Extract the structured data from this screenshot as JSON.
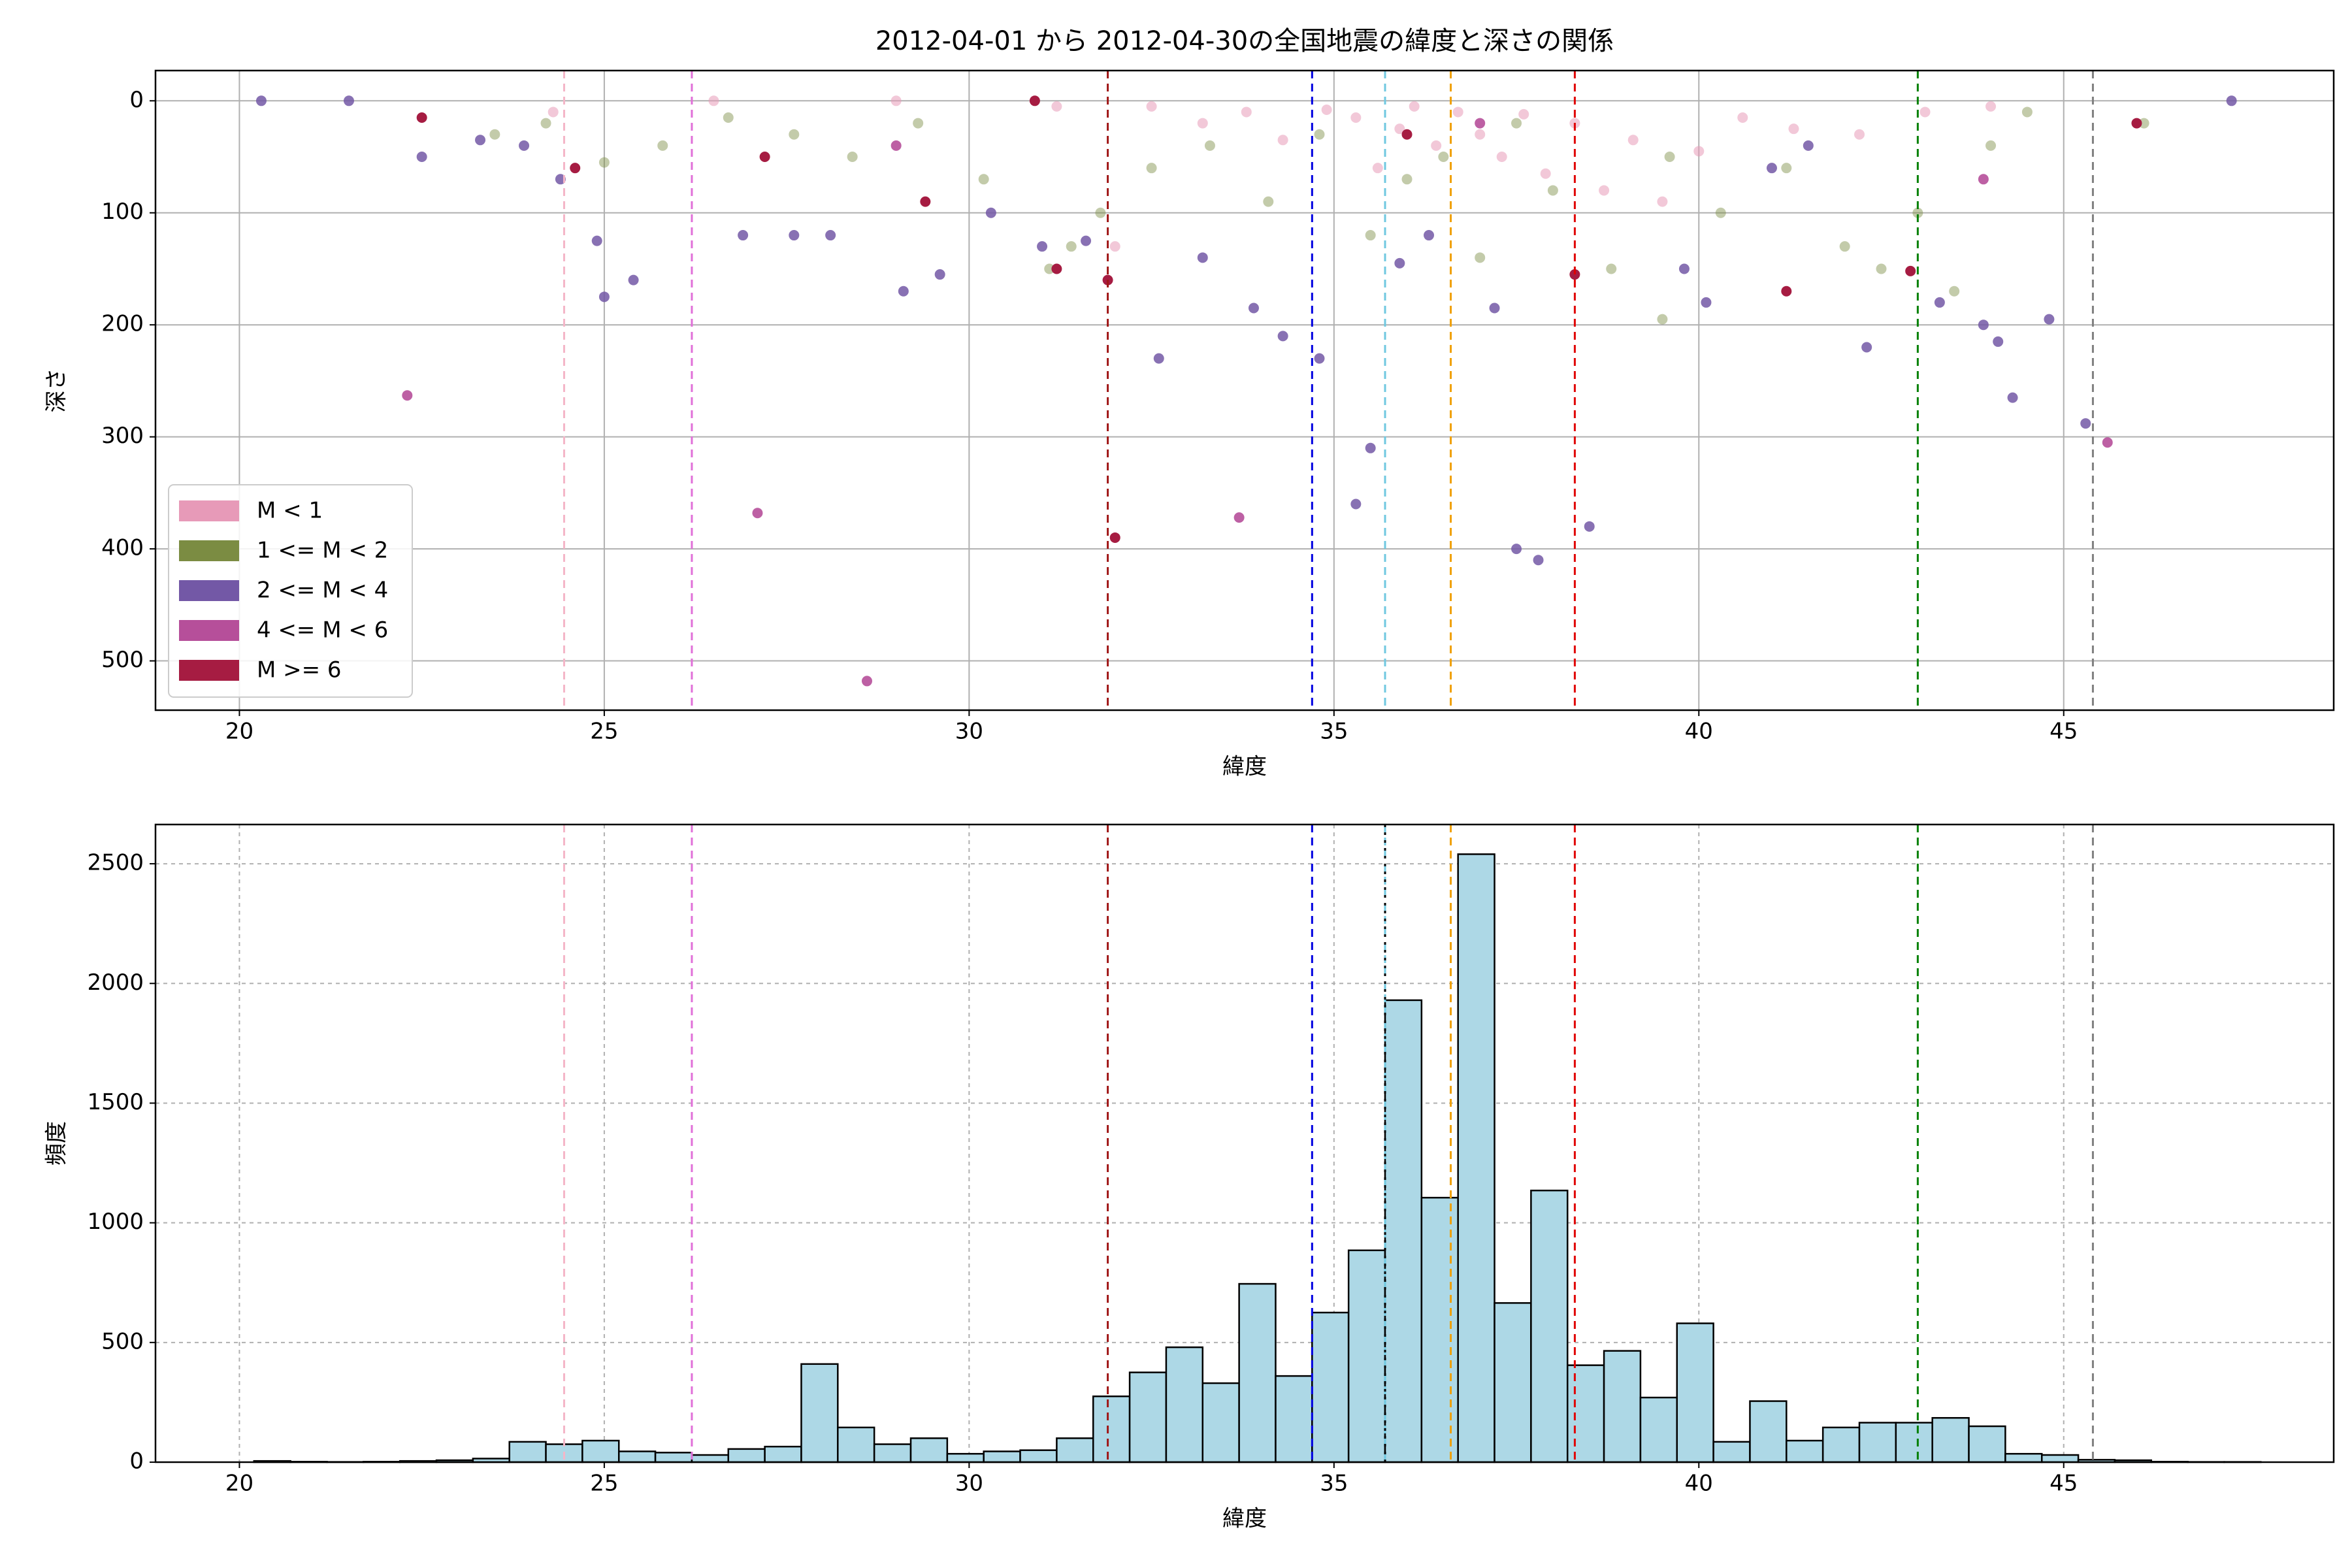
{
  "chart_data": [
    {
      "type": "scatter",
      "title": "2012-04-01 から 2012-04-30の全国地震の緯度と深さの関係",
      "xlabel": "緯度",
      "ylabel": "深さ",
      "xlim": [
        18.85,
        48.7
      ],
      "ylim": [
        544,
        -27
      ],
      "xticks": [
        20,
        25,
        30,
        35,
        40,
        45
      ],
      "yticks": [
        0,
        100,
        200,
        300,
        400,
        500
      ],
      "grid": true,
      "grid_linestyle": "solid",
      "legend_loc": "lower left",
      "series": [
        {
          "name": "M < 1",
          "color": "#e79ab8",
          "alpha": 0.55,
          "x": [
            32.5,
            33.2,
            33.8,
            34.3,
            34.9,
            35.3,
            35.6,
            35.9,
            36.1,
            36.4,
            36.7,
            37.0,
            37.3,
            37.6,
            37.9,
            38.3,
            38.7,
            39.1,
            39.5,
            40.0,
            40.6,
            41.3,
            42.2,
            43.1,
            44.0,
            24.3,
            26.5,
            29.0,
            31.2,
            32.0
          ],
          "values": [
            5,
            20,
            10,
            35,
            8,
            15,
            60,
            25,
            5,
            40,
            10,
            30,
            50,
            12,
            65,
            20,
            80,
            35,
            90,
            45,
            15,
            25,
            30,
            10,
            5,
            10,
            0,
            0,
            5,
            130
          ]
        },
        {
          "name": "1 <= M < 2",
          "color": "#7b8c42",
          "alpha": 0.45,
          "x": [
            23.5,
            24.2,
            25.0,
            25.8,
            26.7,
            27.6,
            28.4,
            29.3,
            30.2,
            31.1,
            31.4,
            31.8,
            32.5,
            33.3,
            34.1,
            34.8,
            35.5,
            36.0,
            36.5,
            37.0,
            37.5,
            38.0,
            38.8,
            39.6,
            40.3,
            41.2,
            42.0,
            42.5,
            43.0,
            43.5,
            44.0,
            44.5,
            46.1,
            39.5
          ],
          "values": [
            30,
            20,
            55,
            40,
            15,
            30,
            50,
            20,
            70,
            150,
            130,
            100,
            60,
            40,
            90,
            30,
            120,
            70,
            50,
            140,
            20,
            80,
            150,
            50,
            100,
            60,
            130,
            150,
            100,
            170,
            40,
            10,
            20,
            195
          ]
        },
        {
          "name": "2 <= M < 4",
          "color": "#7358a6",
          "alpha": 0.85,
          "x": [
            22.5,
            23.3,
            23.9,
            24.4,
            24.9,
            25.0,
            25.4,
            26.9,
            27.6,
            28.1,
            29.1,
            29.6,
            30.3,
            31.0,
            31.6,
            32.6,
            33.2,
            33.9,
            34.3,
            34.8,
            35.3,
            35.5,
            35.9,
            36.3,
            37.2,
            37.5,
            37.8,
            38.5,
            39.8,
            40.1,
            41.0,
            41.5,
            42.3,
            43.3,
            43.9,
            44.1,
            44.3,
            44.8,
            45.3,
            47.3,
            20.3,
            21.5
          ],
          "values": [
            50,
            35,
            40,
            70,
            125,
            175,
            160,
            120,
            120,
            120,
            170,
            155,
            100,
            130,
            125,
            230,
            140,
            185,
            210,
            230,
            360,
            310,
            145,
            120,
            185,
            400,
            410,
            380,
            150,
            180,
            60,
            40,
            220,
            180,
            200,
            215,
            265,
            195,
            288,
            0,
            0,
            0
          ]
        },
        {
          "name": "4 <= M < 6",
          "color": "#b64f9a",
          "alpha": 0.9,
          "x": [
            22.3,
            27.1,
            28.6,
            33.7,
            45.6,
            29.0,
            37.0,
            43.9
          ],
          "values": [
            263,
            368,
            518,
            372,
            305,
            40,
            20,
            70
          ]
        },
        {
          "name": "M >= 6",
          "color": "#a61c42",
          "alpha": 1,
          "x": [
            22.5,
            24.6,
            27.2,
            29.4,
            31.2,
            31.9,
            32.0,
            36.0,
            41.2,
            42.9,
            46.0,
            30.9,
            38.3
          ],
          "values": [
            15,
            60,
            50,
            90,
            150,
            160,
            390,
            30,
            170,
            152,
            20,
            0,
            155
          ]
        }
      ],
      "vlines": [
        {
          "x": 24.45,
          "color": "#f4b6c8",
          "linestyle": "dashed"
        },
        {
          "x": 26.2,
          "color": "#e070d8",
          "linestyle": "dashed"
        },
        {
          "x": 31.9,
          "color": "#a01818",
          "linestyle": "dashed"
        },
        {
          "x": 34.7,
          "color": "#0000e0",
          "linestyle": "dashed"
        },
        {
          "x": 35.7,
          "color": "#70c8e0",
          "linestyle": "dashed"
        },
        {
          "x": 36.6,
          "color": "#f0a000",
          "linestyle": "dashed"
        },
        {
          "x": 38.3,
          "color": "#e00000",
          "linestyle": "dashed"
        },
        {
          "x": 43.0,
          "color": "#008000",
          "linestyle": "dashed"
        },
        {
          "x": 45.4,
          "color": "#808080",
          "linestyle": "dashed"
        }
      ]
    },
    {
      "type": "histogram",
      "xlabel": "緯度",
      "ylabel": "頻度",
      "xlim": [
        18.85,
        48.7
      ],
      "ylim": [
        0,
        2664
      ],
      "xticks": [
        20,
        25,
        30,
        35,
        40,
        45
      ],
      "yticks": [
        0,
        500,
        1000,
        1500,
        2000,
        2500
      ],
      "grid": true,
      "grid_linestyle": "dashed",
      "color": "#add8e6",
      "edgecolor": "#000000",
      "bins": [
        20.2,
        20.7,
        21.2,
        21.7,
        22.2,
        22.7,
        23.2,
        23.7,
        24.2,
        24.7,
        25.2,
        25.7,
        26.2,
        26.7,
        27.2,
        27.7,
        28.2,
        28.7,
        29.2,
        29.7,
        30.2,
        30.7,
        31.2,
        31.7,
        32.2,
        32.7,
        33.2,
        33.7,
        34.2,
        34.7,
        35.2,
        35.7,
        36.2,
        36.7,
        37.2,
        37.7,
        38.2,
        38.7,
        39.2,
        39.7,
        40.2,
        40.7,
        41.2,
        41.7,
        42.2,
        42.7,
        43.2,
        43.7,
        44.2,
        44.7,
        45.2,
        45.7,
        46.2,
        46.7,
        47.2,
        47.7
      ],
      "values": [
        5,
        2,
        1,
        2,
        5,
        8,
        15,
        85,
        75,
        90,
        45,
        40,
        30,
        55,
        65,
        410,
        145,
        75,
        100,
        35,
        45,
        50,
        100,
        275,
        375,
        480,
        330,
        745,
        360,
        625,
        885,
        1930,
        1105,
        2540,
        665,
        1135,
        405,
        465,
        270,
        580,
        85,
        255,
        90,
        145,
        165,
        165,
        185,
        150,
        35,
        30,
        10,
        8,
        2,
        1,
        1
      ],
      "vlines": [
        {
          "x": 24.45,
          "color": "#f4b6c8",
          "linestyle": "dashed"
        },
        {
          "x": 26.2,
          "color": "#e070d8",
          "linestyle": "dashed"
        },
        {
          "x": 31.9,
          "color": "#a01818",
          "linestyle": "dashed"
        },
        {
          "x": 34.7,
          "color": "#0000e0",
          "linestyle": "dashed"
        },
        {
          "x": 35.7,
          "color": "#70c8e0",
          "linestyle": "dashed"
        },
        {
          "x": 35.7,
          "color": "#000000",
          "linestyle": "dotted"
        },
        {
          "x": 36.6,
          "color": "#f0a000",
          "linestyle": "dashed"
        },
        {
          "x": 38.3,
          "color": "#e00000",
          "linestyle": "dashed"
        },
        {
          "x": 43.0,
          "color": "#008000",
          "linestyle": "dashed"
        },
        {
          "x": 45.4,
          "color": "#808080",
          "linestyle": "dashed"
        }
      ]
    }
  ]
}
